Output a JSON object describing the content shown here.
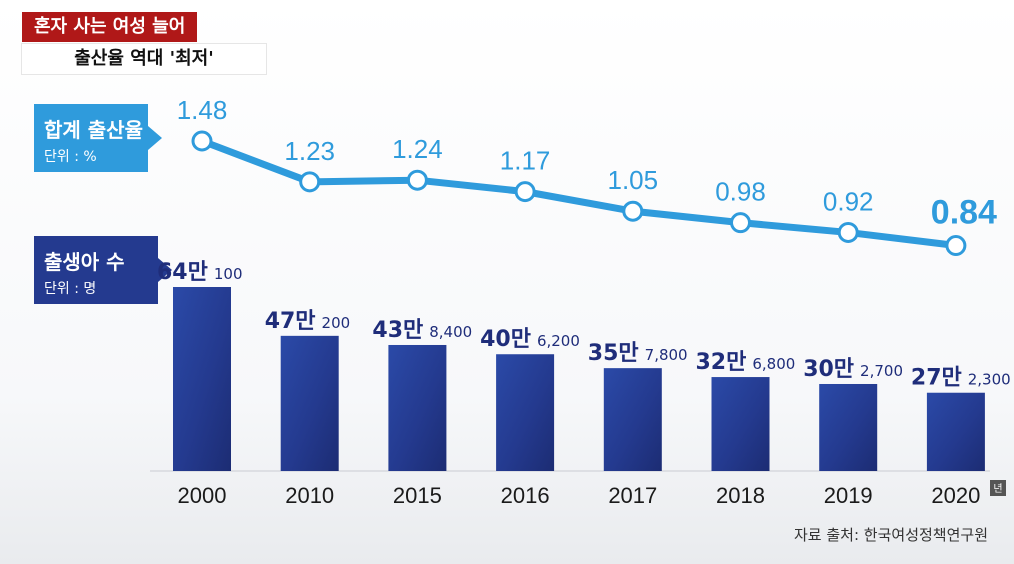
{
  "headline": {
    "tag": "혼자 사는 여성 늘어",
    "subtitle": "출산율 역대 '최저'"
  },
  "legend": {
    "rate": {
      "title": "합계 출산율",
      "unit": "단위 : %"
    },
    "births": {
      "title": "출생아 수",
      "unit": "단위 : 명"
    }
  },
  "year_unit": "년",
  "source": "자료 출처:  한국여성정책연구원",
  "colors": {
    "line": "#2f9bdc",
    "bar": "#243a8f",
    "bar_label": "#1f2d7a",
    "highlight": "#2f9bdc",
    "headline_red": "#b01818"
  },
  "chart_data": {
    "type": "bar",
    "categories": [
      "2000",
      "2010",
      "2015",
      "2016",
      "2017",
      "2018",
      "2019",
      "2020"
    ],
    "series": [
      {
        "name": "출생아 수",
        "type": "bar",
        "values": [
          640100,
          470200,
          438400,
          406200,
          357800,
          326800,
          302700,
          272300
        ],
        "labels_big": [
          "64만",
          "47만",
          "43만",
          "40만",
          "35만",
          "32만",
          "30만",
          "27만"
        ],
        "labels_small": [
          "100",
          "200",
          "8,400",
          "6,200",
          "7,800",
          "6,800",
          "2,700",
          "2,300"
        ]
      },
      {
        "name": "합계 출산율",
        "type": "line",
        "values": [
          1.48,
          1.23,
          1.24,
          1.17,
          1.05,
          0.98,
          0.92,
          0.84
        ],
        "labels": [
          "1.48",
          "1.23",
          "1.24",
          "1.17",
          "1.05",
          "0.98",
          "0.92",
          "0.84"
        ]
      }
    ]
  }
}
